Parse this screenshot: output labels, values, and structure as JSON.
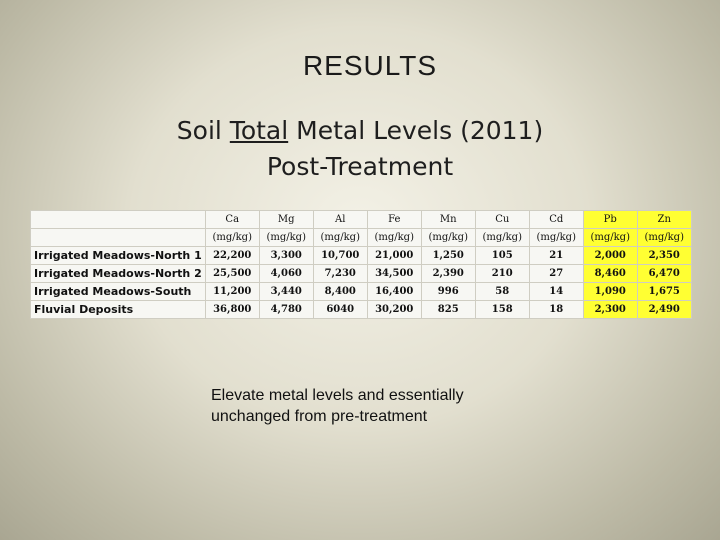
{
  "slide": {
    "title": "RESULTS",
    "subtitle_pre": "Soil ",
    "subtitle_underlined": "Total",
    "subtitle_post": " Metal Levels (2011)",
    "subtitle_line2": "Post-Treatment"
  },
  "table": {
    "highlight_color": "#ffff33",
    "headers": [
      {
        "element": "Ca",
        "unit": "(mg/kg)"
      },
      {
        "element": "Mg",
        "unit": "(mg/kg)"
      },
      {
        "element": "Al",
        "unit": "(mg/kg)"
      },
      {
        "element": "Fe",
        "unit": "(mg/kg)"
      },
      {
        "element": "Mn",
        "unit": "(mg/kg)"
      },
      {
        "element": "Cu",
        "unit": "(mg/kg)"
      },
      {
        "element": "Cd",
        "unit": "(mg/kg)"
      },
      {
        "element": "Pb",
        "unit": "(mg/kg)"
      },
      {
        "element": "Zn",
        "unit": "(mg/kg)"
      }
    ],
    "rows": [
      {
        "site": "Irrigated Meadows-North 1",
        "values": [
          "22,200",
          "3,300",
          "10,700",
          "21,000",
          "1,250",
          "105",
          "21",
          "2,000",
          "2,350"
        ]
      },
      {
        "site": "Irrigated Meadows-North 2",
        "values": [
          "25,500",
          "4,060",
          "7,230",
          "34,500",
          "2,390",
          "210",
          "27",
          "8,460",
          "6,470"
        ]
      },
      {
        "site": "Irrigated Meadows-South",
        "values": [
          "11,200",
          "3,440",
          "8,400",
          "16,400",
          "996",
          "58",
          "14",
          "1,090",
          "1,675"
        ]
      },
      {
        "site": "Fluvial Deposits",
        "values": [
          "36,800",
          "4,780",
          "6040",
          "30,200",
          "825",
          "158",
          "18",
          "2,300",
          "2,490"
        ]
      }
    ]
  },
  "note": {
    "line1": "Elevate metal levels and essentially",
    "line2": "unchanged from pre-treatment"
  }
}
